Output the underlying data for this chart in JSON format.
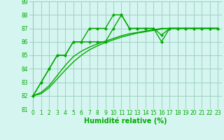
{
  "xlabel": "Humidité relative (%)",
  "xlim": [
    -0.5,
    23.5
  ],
  "ylim": [
    81,
    89
  ],
  "yticks": [
    81,
    82,
    83,
    84,
    85,
    86,
    87,
    88,
    89
  ],
  "xticks": [
    0,
    1,
    2,
    3,
    4,
    5,
    6,
    7,
    8,
    9,
    10,
    11,
    12,
    13,
    14,
    15,
    16,
    17,
    18,
    19,
    20,
    21,
    22,
    23
  ],
  "bg_color": "#d5f5f0",
  "grid_color": "#99ccbb",
  "line_color": "#00aa00",
  "series": [
    {
      "y": [
        82,
        83,
        84,
        85,
        85,
        86,
        86,
        87,
        87,
        87,
        88,
        88,
        87,
        87,
        87,
        87,
        86,
        87,
        87,
        87,
        87,
        87,
        87,
        87
      ],
      "marker": true,
      "lw": 1.0
    },
    {
      "y": [
        82,
        83,
        84,
        85,
        85,
        86,
        86,
        86,
        86,
        86,
        87,
        88,
        87,
        87,
        87,
        87,
        86.5,
        87,
        87,
        87,
        87,
        87,
        87,
        87
      ],
      "marker": true,
      "lw": 1.0
    },
    {
      "y": [
        82,
        82.25,
        82.75,
        83.5,
        84.25,
        84.9,
        85.3,
        85.6,
        85.85,
        86.05,
        86.25,
        86.45,
        86.6,
        86.7,
        86.8,
        86.9,
        87.0,
        87.0,
        87.0,
        87.0,
        87.0,
        87.0,
        87.0,
        87.0
      ],
      "marker": false,
      "lw": 1.0
    },
    {
      "y": [
        82,
        82.15,
        82.6,
        83.25,
        83.9,
        84.5,
        85.0,
        85.4,
        85.7,
        85.95,
        86.15,
        86.35,
        86.5,
        86.65,
        86.75,
        86.85,
        86.95,
        87.0,
        87.0,
        87.0,
        87.0,
        87.0,
        87.0,
        87.0
      ],
      "marker": false,
      "lw": 1.0
    }
  ],
  "xlabel_fontsize": 7,
  "tick_fontsize": 5.5,
  "marker_style": "D",
  "marker_size": 2.0
}
